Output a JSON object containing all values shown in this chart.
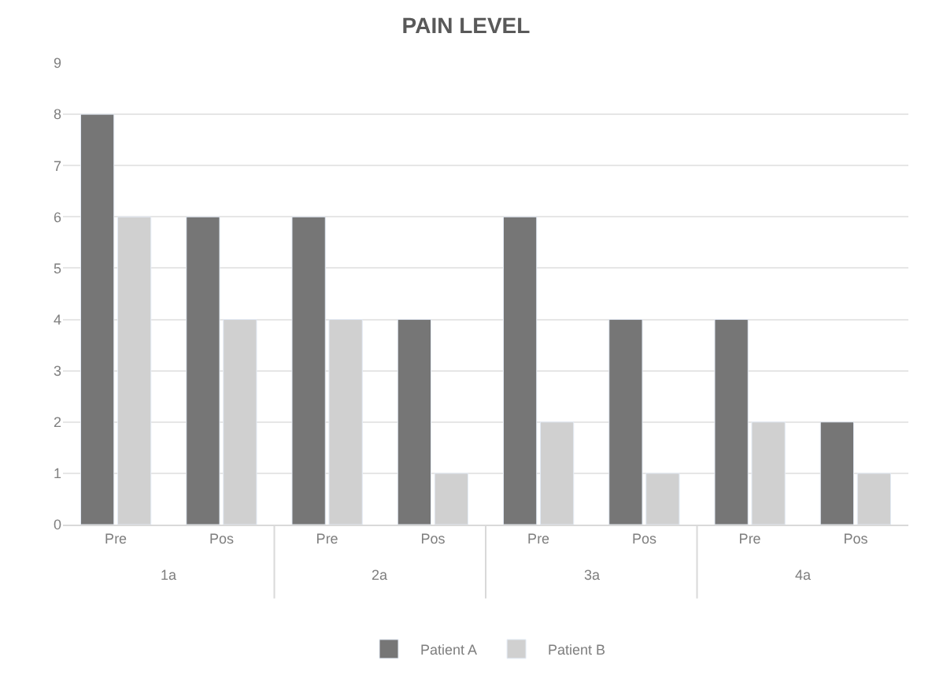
{
  "chart_data": {
    "type": "bar",
    "title": "PAIN LEVEL",
    "categories": [
      "Pre",
      "Pos",
      "Pre",
      "Pos",
      "Pre",
      "Pos",
      "Pre",
      "Pos"
    ],
    "series": [
      {
        "name": "Patient A",
        "color": "#767676",
        "values": [
          8,
          6,
          6,
          4,
          6,
          4,
          4,
          2
        ]
      },
      {
        "name": "Patient B",
        "color": "#d0d0d0",
        "values": [
          6,
          4,
          4,
          1,
          2,
          1,
          2,
          1
        ]
      }
    ],
    "annotations": [
      "1a",
      "2a",
      "3a",
      "4a"
    ],
    "ylim": [
      0,
      9
    ],
    "yticks": [
      0,
      1,
      2,
      3,
      4,
      5,
      6,
      7,
      8,
      9
    ],
    "grid": "y",
    "legend": "bottom"
  }
}
